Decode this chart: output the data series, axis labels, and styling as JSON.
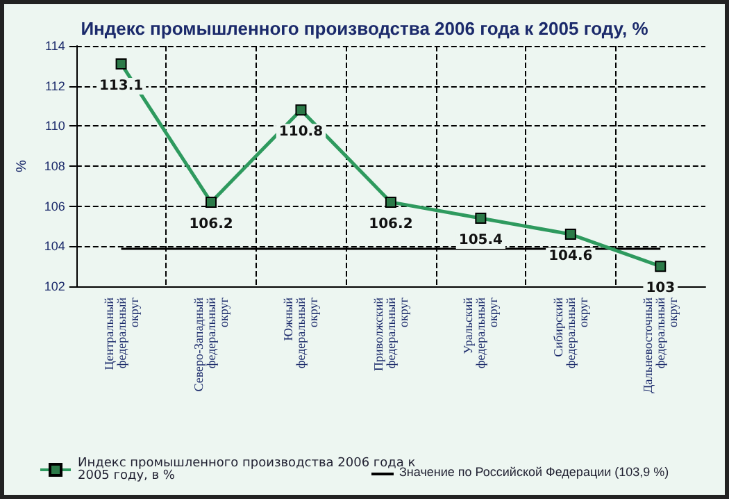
{
  "chart_data": {
    "type": "line",
    "title": "Индекс промышленного производства 2006 года к 2005 году, %",
    "ylabel": "%",
    "categories": [
      "Центральный федеральный округ",
      "Северо-Западный федеральный округ",
      "Южный федеральный округ",
      "Приволжский федеральный округ",
      "Уральский федеральный округ",
      "Сибирский федеральный округ",
      "Дальневосточный федеральный округ"
    ],
    "series": [
      {
        "name": "Индекс промышленного производства 2006 года к 2005 году, в %",
        "color": "#2e9a5e",
        "values": [
          113.1,
          106.2,
          110.8,
          106.2,
          105.4,
          104.6,
          103
        ]
      }
    ],
    "ref_lines": [
      {
        "axis": "y",
        "value": 103.9,
        "label": "Значение по Российской Федерации (103,9 %)",
        "color": "#000000",
        "line_style": "solid"
      }
    ],
    "ylim": [
      102,
      114
    ],
    "yticks": [
      102,
      104,
      106,
      108,
      110,
      112,
      114
    ],
    "grid": true,
    "legend": "bottom",
    "marker": "square",
    "line_style": "solid",
    "data_labels": true
  }
}
